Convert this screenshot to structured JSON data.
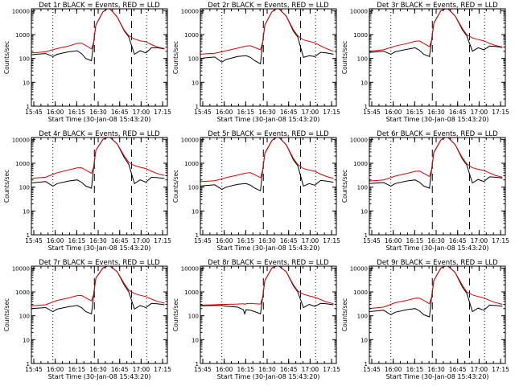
{
  "figure": {
    "xlabel": "Start Time (30-Jan-08 15:43:20)",
    "ylabel": "Counts/sec",
    "x_ticks": [
      "15:45",
      "16:00",
      "16:15",
      "16:30",
      "16:45",
      "17:00",
      "17:15"
    ],
    "y_ticks": [
      "1",
      "10",
      "100",
      "1000",
      "10000"
    ],
    "colors": {
      "events": "#000000",
      "lld": "#dd0000",
      "frame": "#000000"
    }
  },
  "chart_data": [
    {
      "type": "line",
      "title": "Det 1r BLACK = Events, RED = LLD",
      "xlim_min": [
        0,
        95
      ],
      "ylim": [
        1,
        12000
      ],
      "y_scale": "log",
      "x_ticks_min": [
        1.67,
        16.67,
        31.67,
        46.67,
        61.67,
        76.67,
        91.67
      ],
      "vlines_dotted_min": [
        15,
        80.5
      ],
      "vlines_dashed_min": [
        44,
        70
      ],
      "x_min": [
        0,
        3,
        10,
        15,
        18,
        26,
        32,
        35,
        38,
        42,
        43.5,
        45,
        50,
        53,
        55,
        60,
        65,
        68,
        72,
        76,
        80,
        84,
        88,
        93
      ],
      "series": [
        {
          "values": [
            170,
            175,
            190,
            230,
            260,
            330,
            430,
            440,
            350,
            250,
            480,
            2500,
            9000,
            12000,
            12000,
            5500,
            1500,
            900,
            650,
            550,
            500,
            380,
            300,
            260
          ]
        },
        {
          "values": [
            140,
            150,
            160,
            120,
            150,
            190,
            210,
            160,
            100,
            80,
            480,
            2500,
            9000,
            12000,
            12000,
            5500,
            1400,
            800,
            150,
            210,
            170,
            280,
            280,
            250
          ]
        }
      ]
    },
    {
      "type": "line",
      "title": "Det 2r BLACK = Events, RED = LLD",
      "xlim_min": [
        0,
        95
      ],
      "ylim": [
        1,
        12000
      ],
      "y_scale": "log",
      "x_ticks_min": [
        1.67,
        16.67,
        31.67,
        46.67,
        61.67,
        76.67,
        91.67
      ],
      "vlines_dotted_min": [
        15,
        80.5
      ],
      "vlines_dashed_min": [
        44,
        70
      ],
      "x_min": [
        0,
        3,
        10,
        15,
        18,
        26,
        32,
        35,
        38,
        42,
        43.5,
        45,
        50,
        53,
        55,
        60,
        65,
        68,
        72,
        76,
        80,
        84,
        88,
        93
      ],
      "series": [
        {
          "values": [
            150,
            155,
            165,
            190,
            210,
            270,
            330,
            340,
            290,
            230,
            480,
            2500,
            9000,
            12000,
            12000,
            6000,
            1600,
            900,
            600,
            520,
            450,
            340,
            260,
            200
          ]
        },
        {
          "values": [
            100,
            105,
            115,
            70,
            90,
            120,
            130,
            110,
            80,
            60,
            480,
            2500,
            9000,
            12000,
            12000,
            6000,
            1400,
            800,
            110,
            130,
            120,
            180,
            170,
            150
          ]
        }
      ]
    },
    {
      "type": "line",
      "title": "Det 3r BLACK = Events, RED = LLD",
      "xlim_min": [
        0,
        95
      ],
      "ylim": [
        1,
        12000
      ],
      "y_scale": "log",
      "x_ticks_min": [
        1.67,
        16.67,
        31.67,
        46.67,
        61.67,
        76.67,
        91.67
      ],
      "vlines_dotted_min": [
        15,
        80.5
      ],
      "vlines_dashed_min": [
        44,
        70
      ],
      "x_min": [
        0,
        3,
        10,
        15,
        18,
        26,
        32,
        35,
        38,
        42,
        43.5,
        45,
        50,
        53,
        55,
        60,
        65,
        68,
        72,
        76,
        80,
        84,
        88,
        93
      ],
      "series": [
        {
          "values": [
            200,
            210,
            230,
            290,
            330,
            420,
            520,
            540,
            430,
            310,
            600,
            3000,
            10000,
            12000,
            12000,
            6000,
            1800,
            1000,
            720,
            620,
            550,
            430,
            350,
            300
          ]
        },
        {
          "values": [
            180,
            185,
            200,
            150,
            190,
            240,
            280,
            220,
            150,
            120,
            600,
            3000,
            10000,
            12000,
            12000,
            6000,
            1600,
            900,
            200,
            280,
            230,
            330,
            320,
            290
          ]
        }
      ]
    },
    {
      "type": "line",
      "title": "Det 4r BLACK = Events, RED = LLD",
      "xlim_min": [
        0,
        95
      ],
      "ylim": [
        1,
        12000
      ],
      "y_scale": "log",
      "x_ticks_min": [
        1.67,
        16.67,
        31.67,
        46.67,
        61.67,
        76.67,
        91.67
      ],
      "vlines_dotted_min": [
        15,
        80.5
      ],
      "vlines_dashed_min": [
        44,
        70
      ],
      "x_min": [
        0,
        3,
        10,
        15,
        18,
        26,
        32,
        35,
        38,
        42,
        43.5,
        45,
        50,
        53,
        55,
        60,
        65,
        68,
        72,
        76,
        80,
        84,
        88,
        93
      ],
      "series": [
        {
          "values": [
            230,
            240,
            260,
            340,
            400,
            520,
            640,
            650,
            520,
            380,
            700,
            3500,
            10000,
            12000,
            12000,
            6500,
            2000,
            1100,
            800,
            680,
            600,
            460,
            370,
            310
          ]
        },
        {
          "values": [
            150,
            155,
            170,
            110,
            140,
            180,
            200,
            160,
            110,
            90,
            700,
            3500,
            10000,
            12000,
            12000,
            6500,
            1700,
            900,
            140,
            200,
            160,
            260,
            250,
            230
          ]
        }
      ]
    },
    {
      "type": "line",
      "title": "Det 5r BLACK = Events, RED = LLD",
      "xlim_min": [
        0,
        95
      ],
      "ylim": [
        1,
        12000
      ],
      "y_scale": "log",
      "x_ticks_min": [
        1.67,
        16.67,
        31.67,
        46.67,
        61.67,
        76.67,
        91.67
      ],
      "vlines_dotted_min": [
        15,
        80.5
      ],
      "vlines_dashed_min": [
        44,
        70
      ],
      "x_min": [
        0,
        3,
        10,
        15,
        18,
        26,
        32,
        35,
        38,
        42,
        43.5,
        45,
        50,
        53,
        55,
        60,
        65,
        68,
        72,
        76,
        80,
        84,
        88,
        93
      ],
      "series": [
        {
          "values": [
            170,
            175,
            185,
            220,
            250,
            320,
            390,
            400,
            330,
            250,
            500,
            2600,
            9000,
            12000,
            12000,
            6000,
            1600,
            900,
            600,
            520,
            460,
            350,
            280,
            230
          ]
        },
        {
          "values": [
            110,
            115,
            125,
            80,
            100,
            130,
            140,
            120,
            90,
            70,
            500,
            2600,
            9000,
            12000,
            12000,
            6000,
            1400,
            800,
            110,
            140,
            120,
            190,
            180,
            160
          ]
        }
      ]
    },
    {
      "type": "line",
      "title": "Det 6r BLACK = Events, RED = LLD",
      "xlim_min": [
        0,
        95
      ],
      "ylim": [
        1,
        12000
      ],
      "y_scale": "log",
      "x_ticks_min": [
        1.67,
        16.67,
        31.67,
        46.67,
        61.67,
        76.67,
        91.67
      ],
      "vlines_dotted_min": [
        15,
        80.5
      ],
      "vlines_dashed_min": [
        44,
        70
      ],
      "x_min": [
        0,
        3,
        10,
        15,
        18,
        26,
        32,
        35,
        38,
        42,
        43.5,
        45,
        50,
        53,
        55,
        60,
        65,
        68,
        72,
        76,
        80,
        84,
        88,
        93
      ],
      "series": [
        {
          "values": [
            180,
            185,
            200,
            250,
            290,
            370,
            460,
            470,
            380,
            280,
            550,
            2800,
            9500,
            12000,
            12000,
            6000,
            1700,
            950,
            650,
            560,
            500,
            390,
            310,
            260
          ]
        },
        {
          "values": [
            140,
            145,
            155,
            110,
            140,
            180,
            200,
            160,
            110,
            90,
            550,
            2800,
            9500,
            12000,
            12000,
            6000,
            1500,
            850,
            150,
            210,
            170,
            270,
            260,
            240
          ]
        }
      ]
    },
    {
      "type": "line",
      "title": "Det 7r BLACK = Events, RED = LLD",
      "xlim_min": [
        0,
        95
      ],
      "ylim": [
        1,
        12000
      ],
      "y_scale": "log",
      "x_ticks_min": [
        1.67,
        16.67,
        31.67,
        46.67,
        61.67,
        76.67,
        91.67
      ],
      "vlines_dotted_min": [
        15,
        80.5
      ],
      "vlines_dashed_min": [
        44,
        70
      ],
      "x_min": [
        0,
        3,
        10,
        15,
        18,
        26,
        32,
        35,
        38,
        42,
        43.5,
        45,
        50,
        53,
        55,
        60,
        65,
        68,
        72,
        76,
        80,
        84,
        88,
        93
      ],
      "series": [
        {
          "values": [
            260,
            270,
            290,
            380,
            440,
            560,
            700,
            710,
            570,
            420,
            800,
            3800,
            10000,
            12000,
            12000,
            7000,
            2200,
            1200,
            850,
            720,
            640,
            500,
            400,
            340
          ]
        },
        {
          "values": [
            200,
            205,
            220,
            150,
            190,
            240,
            270,
            220,
            150,
            120,
            800,
            3800,
            10000,
            12000,
            12000,
            7000,
            1900,
            1000,
            190,
            270,
            220,
            330,
            320,
            290
          ]
        }
      ]
    },
    {
      "type": "line",
      "title": "Det 8r BLACK = Events, RED = LLD",
      "xlim_min": [
        0,
        95
      ],
      "ylim": [
        1,
        12000
      ],
      "y_scale": "log",
      "x_ticks_min": [
        1.67,
        16.67,
        31.67,
        46.67,
        61.67,
        76.67,
        91.67
      ],
      "vlines_dotted_min": [
        15,
        80.5
      ],
      "vlines_dashed_min": [
        44,
        70
      ],
      "x_min": [
        0,
        3,
        10,
        15,
        18,
        26,
        30,
        31,
        32,
        35,
        38,
        42,
        43.5,
        45,
        50,
        53,
        55,
        60,
        65,
        68,
        72,
        76,
        80,
        84,
        88,
        93
      ],
      "series": [
        {
          "values": [
            280,
            285,
            290,
            300,
            300,
            310,
            320,
            300,
            320,
            330,
            320,
            310,
            600,
            3000,
            10000,
            12000,
            12000,
            7000,
            2000,
            1100,
            800,
            680,
            600,
            480,
            380,
            320
          ]
        },
        {
          "values": [
            260,
            265,
            270,
            270,
            250,
            230,
            180,
            120,
            180,
            170,
            150,
            120,
            600,
            3000,
            10000,
            12000,
            12000,
            7000,
            1800,
            1000,
            220,
            300,
            250,
            330,
            320,
            290
          ]
        }
      ]
    },
    {
      "type": "line",
      "title": "Det 9r BLACK = Events, RED = LLD",
      "xlim_min": [
        0,
        95
      ],
      "ylim": [
        1,
        12000
      ],
      "y_scale": "log",
      "x_ticks_min": [
        1.67,
        16.67,
        31.67,
        46.67,
        61.67,
        76.67,
        91.67
      ],
      "vlines_dotted_min": [
        15,
        80.5
      ],
      "vlines_dashed_min": [
        44,
        70
      ],
      "x_min": [
        0,
        3,
        10,
        15,
        18,
        26,
        32,
        35,
        38,
        42,
        43.5,
        45,
        50,
        53,
        55,
        60,
        65,
        68,
        72,
        76,
        80,
        84,
        88,
        93
      ],
      "series": [
        {
          "values": [
            200,
            210,
            230,
            300,
            350,
            440,
            540,
            550,
            440,
            320,
            620,
            3000,
            10000,
            12000,
            12000,
            6500,
            1900,
            1000,
            750,
            640,
            570,
            440,
            360,
            300
          ]
        },
        {
          "values": [
            150,
            155,
            170,
            110,
            140,
            180,
            200,
            160,
            110,
            90,
            620,
            3000,
            10000,
            12000,
            12000,
            6500,
            1600,
            900,
            150,
            210,
            170,
            280,
            270,
            250
          ]
        }
      ]
    }
  ]
}
